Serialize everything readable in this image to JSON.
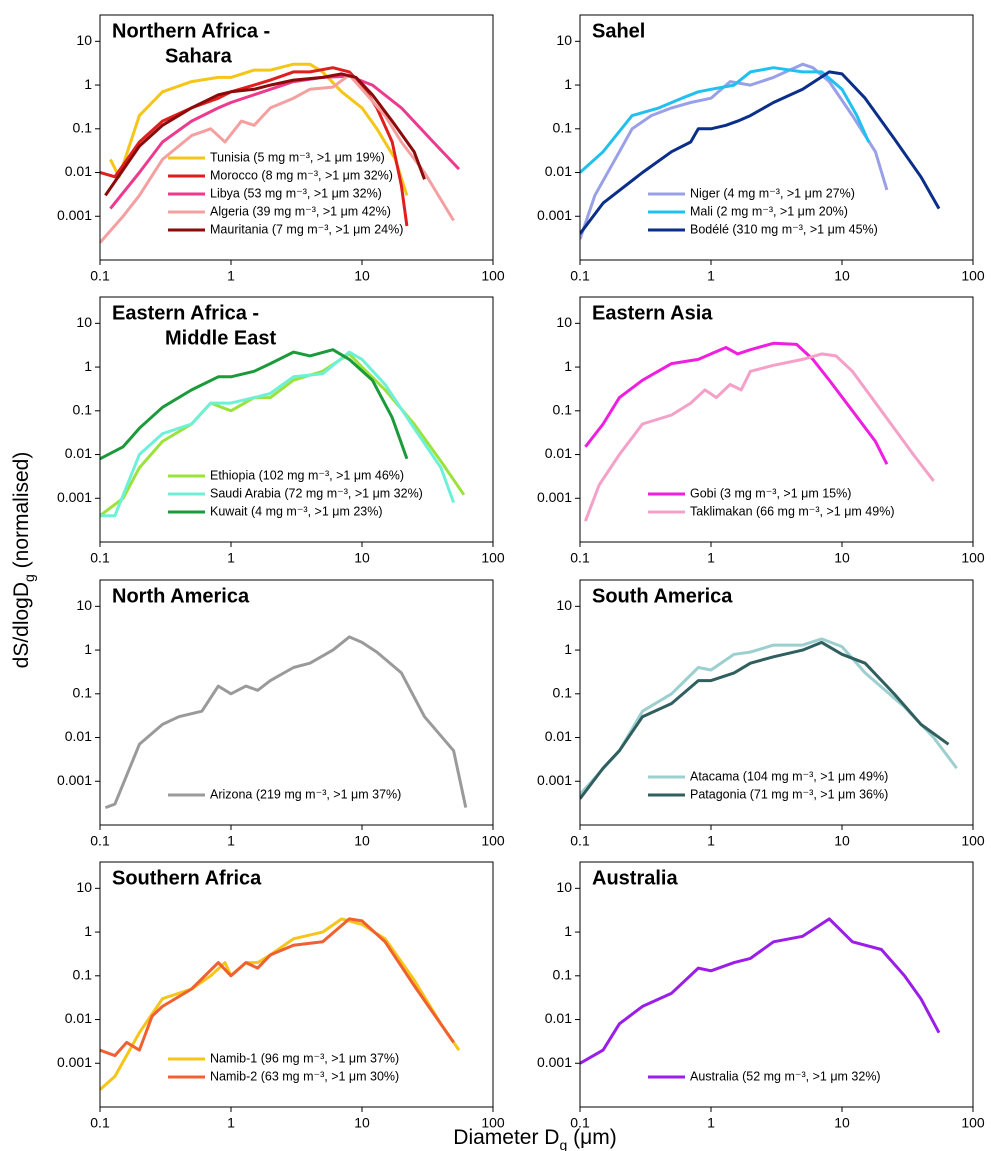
{
  "figure": {
    "xlabel": [
      "Diameter D",
      "g",
      " (μm)"
    ],
    "ylabel": [
      "dS/dlogD",
      "g",
      " (normalised)"
    ]
  },
  "chart_data": [
    {
      "type": "line",
      "title": [
        "Northern Africa -",
        "Sahara"
      ],
      "xscale": "log",
      "yscale": "log",
      "xlim": [
        0.1,
        100
      ],
      "ylim": [
        0.0001,
        40
      ],
      "xticks": [
        0.1,
        1,
        10,
        100
      ],
      "yticks": [
        0.001,
        0.01,
        0.1,
        1,
        10
      ],
      "series": [
        {
          "name": "Tunisia (5 mg m⁻³, >1 μm 19%)",
          "color": "#f5c518",
          "x": [
            0.12,
            0.14,
            0.2,
            0.3,
            0.5,
            0.8,
            1,
            1.5,
            2,
            3,
            4,
            5,
            7,
            10,
            13,
            18,
            22
          ],
          "values": [
            0.02,
            0.008,
            0.2,
            0.7,
            1.2,
            1.5,
            1.5,
            2.2,
            2.2,
            3,
            3,
            2,
            0.7,
            0.3,
            0.1,
            0.02,
            0.003
          ]
        },
        {
          "name": "Morocco (8 mg m⁻³, >1 μm 32%)",
          "color": "#e01e1e",
          "x": [
            0.1,
            0.13,
            0.2,
            0.3,
            0.5,
            0.8,
            1,
            1.5,
            2,
            3,
            4,
            6,
            8,
            10,
            13,
            17,
            20,
            22
          ],
          "values": [
            0.01,
            0.008,
            0.05,
            0.15,
            0.3,
            0.5,
            0.7,
            1,
            1.3,
            2,
            2,
            2.5,
            2,
            1,
            0.3,
            0.05,
            0.005,
            0.0006
          ]
        },
        {
          "name": "Libya (53 mg m⁻³, >1 μm 32%)",
          "color": "#ee3a8c",
          "x": [
            0.12,
            0.2,
            0.3,
            0.5,
            0.8,
            1,
            2,
            3,
            5,
            8,
            12,
            20,
            35,
            55
          ],
          "values": [
            0.0015,
            0.01,
            0.05,
            0.15,
            0.3,
            0.4,
            0.8,
            1.2,
            1.5,
            1.6,
            1,
            0.3,
            0.05,
            0.012
          ]
        },
        {
          "name": "Algeria (39 mg m⁻³, >1 μm 42%)",
          "color": "#f4a0a0",
          "x": [
            0.1,
            0.15,
            0.2,
            0.3,
            0.5,
            0.7,
            0.9,
            1.2,
            1.5,
            2,
            3,
            4,
            6,
            8,
            10,
            15,
            20,
            30,
            50
          ],
          "values": [
            0.00025,
            0.001,
            0.003,
            0.02,
            0.07,
            0.1,
            0.05,
            0.15,
            0.12,
            0.3,
            0.5,
            0.8,
            0.9,
            1.7,
            0.8,
            0.2,
            0.05,
            0.01,
            0.0008
          ]
        },
        {
          "name": "Mauritania (7 mg m⁻³, >1 μm 24%)",
          "color": "#8b0a0a",
          "x": [
            0.11,
            0.2,
            0.3,
            0.5,
            0.8,
            1,
            1.5,
            2,
            3,
            5,
            7,
            9,
            12,
            17,
            25,
            30
          ],
          "values": [
            0.003,
            0.04,
            0.12,
            0.3,
            0.6,
            0.7,
            0.8,
            1,
            1.3,
            1.5,
            1.8,
            1.5,
            0.6,
            0.15,
            0.03,
            0.007
          ]
        }
      ]
    },
    {
      "type": "line",
      "title": [
        "Sahel"
      ],
      "xscale": "log",
      "yscale": "log",
      "xlim": [
        0.1,
        100
      ],
      "ylim": [
        0.0001,
        40
      ],
      "xticks": [
        0.1,
        1,
        10,
        100
      ],
      "yticks": [
        0.001,
        0.01,
        0.1,
        1,
        10
      ],
      "series": [
        {
          "name": "Niger (4 mg m⁻³, >1 μm 27%)",
          "color": "#9aa0e8",
          "x": [
            0.1,
            0.13,
            0.2,
            0.25,
            0.35,
            0.5,
            0.7,
            1,
            1.4,
            2,
            3,
            5,
            6,
            8,
            12,
            18,
            22
          ],
          "values": [
            0.0003,
            0.003,
            0.03,
            0.1,
            0.2,
            0.3,
            0.4,
            0.5,
            1.2,
            1,
            1.5,
            3,
            2.5,
            1.2,
            0.2,
            0.03,
            0.004
          ]
        },
        {
          "name": "Mali (2 mg m⁻³, >1 μm 20%)",
          "color": "#20c0f0",
          "x": [
            0.1,
            0.15,
            0.25,
            0.4,
            0.6,
            0.8,
            1,
            1.5,
            2,
            3,
            5,
            7,
            10,
            13,
            16
          ],
          "values": [
            0.01,
            0.03,
            0.2,
            0.3,
            0.5,
            0.7,
            0.8,
            1,
            2,
            2.5,
            2,
            2,
            0.8,
            0.2,
            0.05
          ]
        },
        {
          "name": "Bodélé (310 mg m⁻³, >1 μm 45%)",
          "color": "#0a2e8a",
          "x": [
            0.1,
            0.15,
            0.3,
            0.5,
            0.7,
            0.8,
            1,
            1.3,
            1.6,
            2,
            3,
            5,
            8,
            10,
            15,
            25,
            40,
            55
          ],
          "values": [
            0.0004,
            0.002,
            0.01,
            0.03,
            0.05,
            0.1,
            0.1,
            0.12,
            0.15,
            0.2,
            0.4,
            0.8,
            2,
            1.8,
            0.5,
            0.06,
            0.008,
            0.0015
          ]
        }
      ]
    },
    {
      "type": "line",
      "title": [
        "Eastern Africa -",
        "Middle East"
      ],
      "xscale": "log",
      "yscale": "log",
      "xlim": [
        0.1,
        100
      ],
      "ylim": [
        0.0001,
        40
      ],
      "xticks": [
        0.1,
        1,
        10,
        100
      ],
      "yticks": [
        0.001,
        0.01,
        0.1,
        1,
        10
      ],
      "series": [
        {
          "name": "Ethiopia (102 mg m⁻³, >1 μm 46%)",
          "color": "#9be23a",
          "x": [
            0.1,
            0.15,
            0.2,
            0.3,
            0.5,
            0.7,
            1,
            1.5,
            2,
            3,
            5,
            8,
            10,
            15,
            25,
            40,
            60
          ],
          "values": [
            0.0004,
            0.001,
            0.005,
            0.02,
            0.05,
            0.15,
            0.1,
            0.2,
            0.2,
            0.5,
            0.8,
            2,
            1,
            0.3,
            0.05,
            0.007,
            0.0012
          ]
        },
        {
          "name": "Saudi Arabia (72 mg m⁻³, >1 μm 32%)",
          "color": "#6ef0d8",
          "x": [
            0.1,
            0.13,
            0.2,
            0.3,
            0.5,
            0.7,
            1,
            1.5,
            2,
            3,
            5,
            8,
            10,
            15,
            25,
            40,
            50
          ],
          "values": [
            0.0004,
            0.0004,
            0.01,
            0.03,
            0.05,
            0.15,
            0.15,
            0.2,
            0.25,
            0.6,
            0.7,
            2.2,
            1.5,
            0.4,
            0.04,
            0.005,
            0.0008
          ]
        },
        {
          "name": "Kuwait (4 mg m⁻³, >1 μm 23%)",
          "color": "#1a9a3a",
          "x": [
            0.1,
            0.15,
            0.2,
            0.3,
            0.5,
            0.8,
            1,
            1.5,
            2,
            3,
            4,
            6,
            8,
            12,
            17,
            22
          ],
          "values": [
            0.008,
            0.015,
            0.04,
            0.12,
            0.3,
            0.6,
            0.6,
            0.8,
            1.2,
            2.2,
            1.8,
            2.5,
            1.5,
            0.5,
            0.07,
            0.008
          ]
        }
      ]
    },
    {
      "type": "line",
      "title": [
        "Eastern Asia"
      ],
      "xscale": "log",
      "yscale": "log",
      "xlim": [
        0.1,
        100
      ],
      "ylim": [
        0.0001,
        40
      ],
      "xticks": [
        0.1,
        1,
        10,
        100
      ],
      "yticks": [
        0.001,
        0.01,
        0.1,
        1,
        10
      ],
      "series": [
        {
          "name": "Gobi (3 mg m⁻³, >1 μm 15%)",
          "color": "#f01ee0",
          "x": [
            0.11,
            0.15,
            0.2,
            0.3,
            0.5,
            0.8,
            1,
            1.3,
            1.6,
            2,
            3,
            4.5,
            6,
            8,
            12,
            18,
            22
          ],
          "values": [
            0.015,
            0.05,
            0.2,
            0.5,
            1.2,
            1.5,
            2,
            2.8,
            2,
            2.5,
            3.5,
            3.3,
            1.5,
            0.5,
            0.1,
            0.02,
            0.006
          ]
        },
        {
          "name": "Taklimakan (66 mg m⁻³, >1 μm 49%)",
          "color": "#f5a0c8",
          "x": [
            0.11,
            0.14,
            0.2,
            0.3,
            0.5,
            0.7,
            0.9,
            1.1,
            1.4,
            1.7,
            2,
            3,
            5,
            7,
            9,
            12,
            20,
            35,
            50
          ],
          "values": [
            0.0003,
            0.002,
            0.01,
            0.05,
            0.08,
            0.15,
            0.3,
            0.2,
            0.4,
            0.3,
            0.8,
            1.1,
            1.5,
            2,
            1.8,
            0.8,
            0.1,
            0.01,
            0.0025
          ]
        }
      ]
    },
    {
      "type": "line",
      "title": [
        "North America"
      ],
      "xscale": "log",
      "yscale": "log",
      "xlim": [
        0.1,
        100
      ],
      "ylim": [
        0.0001,
        40
      ],
      "xticks": [
        0.1,
        1,
        10,
        100
      ],
      "yticks": [
        0.001,
        0.01,
        0.1,
        1,
        10
      ],
      "series": [
        {
          "name": "Arizona (219 mg m⁻³, >1 μm 37%)",
          "color": "#9a9a9a",
          "x": [
            0.11,
            0.13,
            0.2,
            0.3,
            0.4,
            0.6,
            0.8,
            1,
            1.3,
            1.6,
            2,
            3,
            4,
            6,
            8,
            10,
            13,
            20,
            30,
            50,
            62
          ],
          "values": [
            0.00025,
            0.0003,
            0.007,
            0.02,
            0.03,
            0.04,
            0.15,
            0.1,
            0.15,
            0.12,
            0.2,
            0.4,
            0.5,
            1,
            2,
            1.5,
            0.9,
            0.3,
            0.03,
            0.005,
            0.00025
          ]
        }
      ]
    },
    {
      "type": "line",
      "title": [
        "South America"
      ],
      "xscale": "log",
      "yscale": "log",
      "xlim": [
        0.1,
        100
      ],
      "ylim": [
        0.0001,
        40
      ],
      "xticks": [
        0.1,
        1,
        10,
        100
      ],
      "yticks": [
        0.001,
        0.01,
        0.1,
        1,
        10
      ],
      "series": [
        {
          "name": "Atacama (104 mg m⁻³, >1 μm 49%)",
          "color": "#9ccfcf",
          "x": [
            0.1,
            0.2,
            0.3,
            0.5,
            0.8,
            1,
            1.5,
            2,
            3,
            5,
            7,
            10,
            15,
            30,
            50,
            75
          ],
          "values": [
            0.0005,
            0.005,
            0.04,
            0.1,
            0.4,
            0.35,
            0.8,
            0.9,
            1.3,
            1.3,
            1.8,
            1.2,
            0.3,
            0.05,
            0.01,
            0.002
          ]
        },
        {
          "name": "Patagonia (71 mg m⁻³, >1 μm 36%)",
          "color": "#2f5f5f",
          "x": [
            0.1,
            0.15,
            0.2,
            0.3,
            0.5,
            0.8,
            1,
            1.5,
            2,
            3,
            5,
            7,
            10,
            15,
            25,
            40,
            65
          ],
          "values": [
            0.0004,
            0.002,
            0.005,
            0.03,
            0.06,
            0.2,
            0.2,
            0.3,
            0.5,
            0.7,
            1,
            1.5,
            0.8,
            0.5,
            0.1,
            0.02,
            0.007
          ]
        }
      ]
    },
    {
      "type": "line",
      "title": [
        "Southern Africa"
      ],
      "xscale": "log",
      "yscale": "log",
      "xlim": [
        0.1,
        100
      ],
      "ylim": [
        0.0001,
        40
      ],
      "xticks": [
        0.1,
        1,
        10,
        100
      ],
      "yticks": [
        0.001,
        0.01,
        0.1,
        1,
        10
      ],
      "series": [
        {
          "name": "Namib-1 (96 mg m⁻³, >1 μm 37%)",
          "color": "#f5c518",
          "x": [
            0.1,
            0.13,
            0.2,
            0.3,
            0.5,
            0.7,
            0.9,
            1,
            1.3,
            1.6,
            2,
            3,
            5,
            7,
            10,
            15,
            25,
            40,
            55
          ],
          "values": [
            0.00025,
            0.0005,
            0.005,
            0.03,
            0.05,
            0.1,
            0.2,
            0.1,
            0.2,
            0.2,
            0.3,
            0.7,
            1,
            2,
            1.5,
            0.7,
            0.08,
            0.008,
            0.002
          ]
        },
        {
          "name": "Namib-2 (63 mg m⁻³, >1 μm 30%)",
          "color": "#f06030",
          "x": [
            0.1,
            0.13,
            0.16,
            0.2,
            0.25,
            0.3,
            0.5,
            0.8,
            1,
            1.3,
            1.6,
            2,
            3,
            5,
            8,
            10,
            15,
            25,
            50
          ],
          "values": [
            0.002,
            0.0015,
            0.003,
            0.002,
            0.012,
            0.02,
            0.05,
            0.2,
            0.1,
            0.2,
            0.15,
            0.3,
            0.5,
            0.6,
            2,
            1.8,
            0.6,
            0.06,
            0.003
          ]
        }
      ]
    },
    {
      "type": "line",
      "title": [
        "Australia"
      ],
      "xscale": "log",
      "yscale": "log",
      "xlim": [
        0.1,
        100
      ],
      "ylim": [
        0.0001,
        40
      ],
      "xticks": [
        0.1,
        1,
        10,
        100
      ],
      "yticks": [
        0.001,
        0.01,
        0.1,
        1,
        10
      ],
      "series": [
        {
          "name": "Australia (52 mg m⁻³, >1 μm 32%)",
          "color": "#9a1ee8",
          "x": [
            0.1,
            0.15,
            0.2,
            0.3,
            0.5,
            0.8,
            1,
            1.5,
            2,
            3,
            5,
            8,
            12,
            20,
            30,
            40,
            55
          ],
          "values": [
            0.001,
            0.002,
            0.008,
            0.02,
            0.04,
            0.15,
            0.13,
            0.2,
            0.25,
            0.6,
            0.8,
            2,
            0.6,
            0.4,
            0.1,
            0.03,
            0.005
          ]
        }
      ]
    }
  ]
}
